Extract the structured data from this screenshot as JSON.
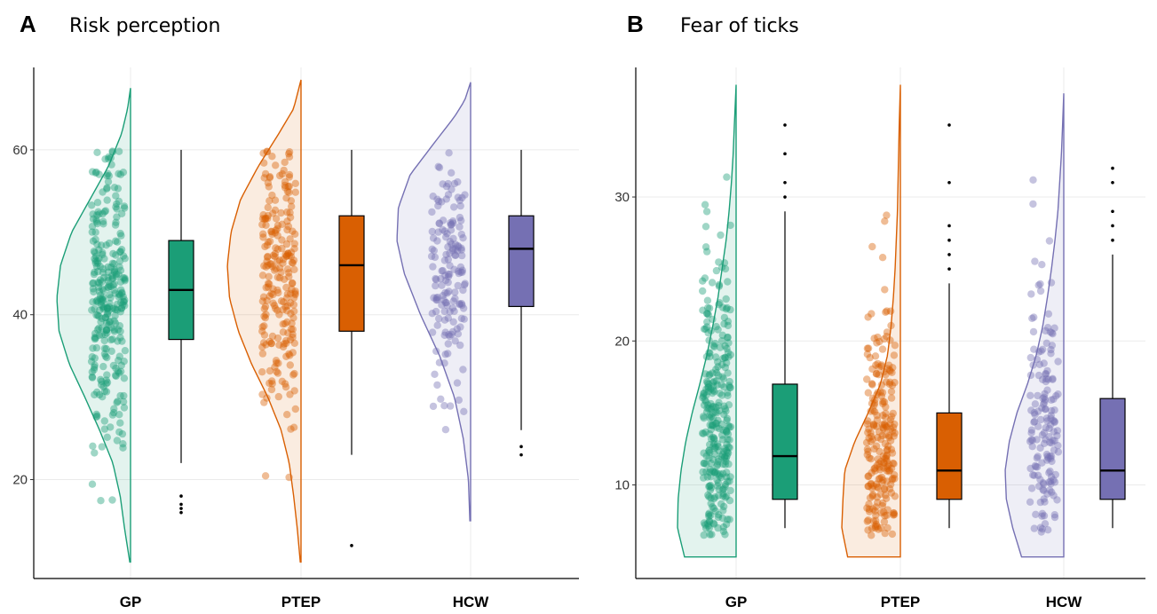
{
  "groups": [
    {
      "name": "GP",
      "color": "#1b9e77"
    },
    {
      "name": "PTEP",
      "color": "#d95f02"
    },
    {
      "name": "HCW",
      "color": "#7570b3"
    }
  ],
  "chart_data": [
    {
      "type": "violin-box",
      "panel_label": "A",
      "title": "Risk perception",
      "categories": [
        "GP",
        "PTEP",
        "HCW"
      ],
      "ylim": [
        8,
        70
      ],
      "yticks": [
        20,
        40,
        60
      ],
      "grid": true,
      "series": [
        {
          "name": "GP",
          "range": [
            10,
            67.5
          ],
          "density": [
            [
              10,
              0.01
            ],
            [
              14,
              0.08
            ],
            [
              18,
              0.14
            ],
            [
              22,
              0.24
            ],
            [
              26,
              0.42
            ],
            [
              30,
              0.62
            ],
            [
              34,
              0.83
            ],
            [
              38,
              0.97
            ],
            [
              42,
              1.0
            ],
            [
              46,
              0.95
            ],
            [
              50,
              0.8
            ],
            [
              54,
              0.55
            ],
            [
              58,
              0.3
            ],
            [
              62,
              0.12
            ],
            [
              65,
              0.04
            ],
            [
              67.5,
              0.0
            ]
          ],
          "box": {
            "min": 22,
            "q1": 37,
            "median": 43,
            "q3": 49,
            "max": 60
          },
          "outliers": [
            16,
            16.5,
            17,
            18
          ],
          "points_center": 43,
          "points_sd": 9,
          "points_min": 15,
          "points_max": 60,
          "points_n": 300
        },
        {
          "name": "PTEP",
          "range": [
            10,
            68.5
          ],
          "density": [
            [
              10,
              0.01
            ],
            [
              14,
              0.05
            ],
            [
              18,
              0.1
            ],
            [
              22,
              0.16
            ],
            [
              26,
              0.27
            ],
            [
              30,
              0.45
            ],
            [
              34,
              0.67
            ],
            [
              38,
              0.85
            ],
            [
              42,
              0.97
            ],
            [
              46,
              1.0
            ],
            [
              50,
              0.95
            ],
            [
              54,
              0.82
            ],
            [
              58,
              0.58
            ],
            [
              62,
              0.3
            ],
            [
              65,
              0.1
            ],
            [
              68.5,
              0.0
            ]
          ],
          "box": {
            "min": 23,
            "q1": 38,
            "median": 46,
            "q3": 52,
            "max": 60
          },
          "outliers": [
            12
          ],
          "points_center": 45,
          "points_sd": 9,
          "points_min": 12,
          "points_max": 60,
          "points_n": 230
        },
        {
          "name": "HCW",
          "range": [
            15,
            68.2
          ],
          "density": [
            [
              15,
              0.01
            ],
            [
              20,
              0.03
            ],
            [
              25,
              0.1
            ],
            [
              30,
              0.22
            ],
            [
              35,
              0.42
            ],
            [
              40,
              0.68
            ],
            [
              45,
              0.9
            ],
            [
              49,
              1.0
            ],
            [
              53,
              0.98
            ],
            [
              57,
              0.82
            ],
            [
              61,
              0.48
            ],
            [
              64,
              0.22
            ],
            [
              66,
              0.08
            ],
            [
              68.2,
              0.0
            ]
          ],
          "box": {
            "min": 26,
            "q1": 41,
            "median": 48,
            "q3": 52,
            "max": 60
          },
          "outliers": [
            23,
            24
          ],
          "points_center": 46,
          "points_sd": 8,
          "points_min": 22,
          "points_max": 60,
          "points_n": 160
        }
      ]
    },
    {
      "type": "violin-box",
      "panel_label": "B",
      "title": "Fear of ticks",
      "categories": [
        "GP",
        "PTEP",
        "HCW"
      ],
      "ylim": [
        3.5,
        39
      ],
      "yticks": [
        10,
        20,
        30
      ],
      "grid": true,
      "series": [
        {
          "name": "GP",
          "range": [
            5,
            37.8
          ],
          "density": [
            [
              5,
              0.88
            ],
            [
              7,
              1.0
            ],
            [
              9,
              0.99
            ],
            [
              11,
              0.94
            ],
            [
              13,
              0.86
            ],
            [
              15,
              0.75
            ],
            [
              17,
              0.62
            ],
            [
              19,
              0.5
            ],
            [
              21,
              0.4
            ],
            [
              23,
              0.31
            ],
            [
              25,
              0.24
            ],
            [
              27,
              0.17
            ],
            [
              29,
              0.12
            ],
            [
              31,
              0.08
            ],
            [
              33,
              0.05
            ],
            [
              35,
              0.03
            ],
            [
              37.8,
              0.0
            ]
          ],
          "box": {
            "min": 7,
            "q1": 9,
            "median": 12,
            "q3": 17,
            "max": 29
          },
          "outliers": [
            30,
            31,
            33,
            35
          ],
          "points_center": 13,
          "points_sd": 6,
          "points_min": 6.5,
          "points_max": 35.5,
          "points_n": 300
        },
        {
          "name": "PTEP",
          "range": [
            5,
            37.8
          ],
          "density": [
            [
              5,
              0.9
            ],
            [
              7,
              1.0
            ],
            [
              9,
              0.98
            ],
            [
              11,
              0.95
            ],
            [
              13,
              0.78
            ],
            [
              15,
              0.55
            ],
            [
              17,
              0.34
            ],
            [
              19,
              0.22
            ],
            [
              21,
              0.16
            ],
            [
              23,
              0.12
            ],
            [
              25,
              0.09
            ],
            [
              27,
              0.07
            ],
            [
              29,
              0.05
            ],
            [
              31,
              0.04
            ],
            [
              33,
              0.03
            ],
            [
              35,
              0.02
            ],
            [
              37.8,
              0.0
            ]
          ],
          "box": {
            "min": 7,
            "q1": 9,
            "median": 11,
            "q3": 15,
            "max": 24
          },
          "outliers": [
            25,
            26,
            27,
            28,
            31,
            35
          ],
          "points_center": 12,
          "points_sd": 5,
          "points_min": 6.5,
          "points_max": 35.5,
          "points_n": 230
        },
        {
          "name": "HCW",
          "range": [
            5,
            37.2
          ],
          "density": [
            [
              5,
              0.72
            ],
            [
              7,
              0.87
            ],
            [
              9,
              0.98
            ],
            [
              11,
              1.0
            ],
            [
              13,
              0.93
            ],
            [
              15,
              0.8
            ],
            [
              17,
              0.62
            ],
            [
              19,
              0.47
            ],
            [
              21,
              0.36
            ],
            [
              23,
              0.28
            ],
            [
              25,
              0.21
            ],
            [
              27,
              0.15
            ],
            [
              29,
              0.1
            ],
            [
              31,
              0.07
            ],
            [
              33,
              0.04
            ],
            [
              35,
              0.02
            ],
            [
              37.2,
              0.0
            ]
          ],
          "box": {
            "min": 7,
            "q1": 9,
            "median": 11,
            "q3": 16,
            "max": 26
          },
          "outliers": [
            27,
            28,
            29,
            31,
            32
          ],
          "points_center": 13,
          "points_sd": 6,
          "points_min": 6.5,
          "points_max": 32,
          "points_n": 160
        }
      ]
    }
  ]
}
